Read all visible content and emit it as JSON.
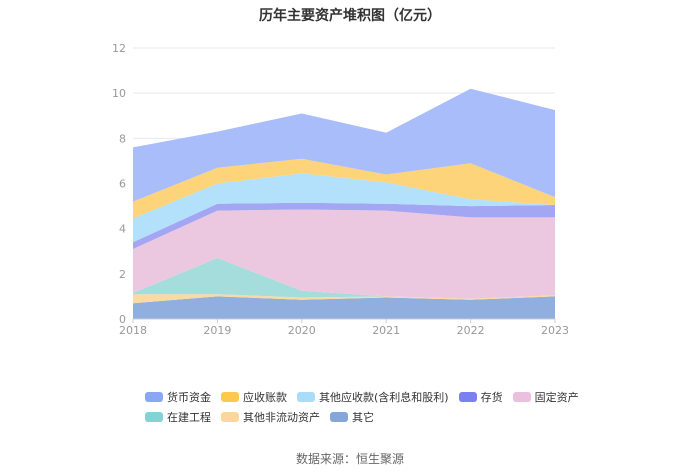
{
  "chart_data": {
    "type": "area",
    "title": "历年主要资产堆积图（亿元）",
    "x": [
      "2018",
      "2019",
      "2020",
      "2021",
      "2022",
      "2023"
    ],
    "ylim": [
      0,
      12
    ],
    "yticks": [
      0,
      2,
      4,
      6,
      8,
      10,
      12
    ],
    "stacked": true,
    "grid": true,
    "legend_position": "bottom",
    "series": [
      {
        "name": "其它",
        "color": "#90aede",
        "values": [
          0.7,
          1.0,
          0.85,
          0.95,
          0.85,
          1.0
        ]
      },
      {
        "name": "其他非流动资产",
        "color": "#fbdaa2",
        "values": [
          0.4,
          0.1,
          0.1,
          0.05,
          0.05,
          0.05
        ]
      },
      {
        "name": "在建工程",
        "color": "#a5dcdc",
        "values": [
          0.05,
          1.6,
          0.3,
          0.0,
          0.0,
          0.0
        ]
      },
      {
        "name": "固定资产",
        "color": "#ecc8e0",
        "values": [
          1.95,
          2.1,
          3.6,
          3.8,
          3.6,
          3.45
        ]
      },
      {
        "name": "存货",
        "color": "#a3a6f3",
        "values": [
          0.3,
          0.3,
          0.3,
          0.3,
          0.5,
          0.55
        ]
      },
      {
        "name": "其他应收款(含利息和股利)",
        "color": "#b3e0fa",
        "values": [
          1.05,
          0.9,
          1.3,
          0.95,
          0.3,
          0.0
        ]
      },
      {
        "name": "应收账款",
        "color": "#fed47a",
        "values": [
          0.75,
          0.7,
          0.65,
          0.35,
          1.6,
          0.35
        ]
      },
      {
        "name": "货币资金",
        "color": "#a8bdf9",
        "values": [
          2.4,
          1.6,
          2.0,
          1.85,
          3.3,
          3.85
        ]
      }
    ]
  },
  "legend": {
    "row1": [
      {
        "label": "货币资金",
        "color": "#8aa7f5"
      },
      {
        "label": "应收账款",
        "color": "#fdc94a"
      },
      {
        "label": "其他应收款(含利息和股利)",
        "color": "#a8dcf8"
      },
      {
        "label": "存货",
        "color": "#7b80f0"
      },
      {
        "label": "固定资产",
        "color": "#ebbfde"
      }
    ],
    "row2": [
      {
        "label": "在建工程",
        "color": "#82d3d3"
      },
      {
        "label": "其他非流动资产",
        "color": "#fbd79b"
      },
      {
        "label": "其它",
        "color": "#87a6d8"
      }
    ]
  },
  "source": "数据来源：恒生聚源"
}
